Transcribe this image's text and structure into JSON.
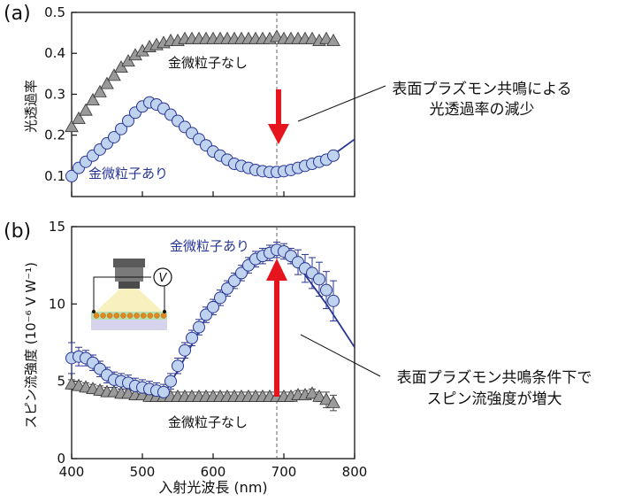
{
  "panels": [
    {
      "label": "(a)",
      "ylabel": "光透過率",
      "xlim": [
        400,
        800
      ],
      "ylim": [
        0.05,
        0.5
      ],
      "yticks": [
        "0.1",
        "0.2",
        "0.3",
        "0.4",
        "0.5"
      ],
      "ytick_values": [
        0.1,
        0.2,
        0.3,
        0.4,
        0.5
      ],
      "series_labels": {
        "without": "金微粒子なし",
        "with": "金微粒子あり"
      },
      "annotation": [
        "表面プラズモン共鳴による",
        "光透過率の減少"
      ]
    },
    {
      "label": "(b)",
      "ylabel": "スピン流強度 (10⁻⁶ V W⁻¹)",
      "xlabel": "入射光波長 (nm)",
      "xlim": [
        400,
        800
      ],
      "ylim": [
        0,
        15
      ],
      "xticks": [
        "400",
        "500",
        "600",
        "700",
        "800"
      ],
      "xtick_values": [
        400,
        500,
        600,
        700,
        800
      ],
      "yticks": [
        "0",
        "5",
        "10",
        "15"
      ],
      "ytick_values": [
        0,
        5,
        10,
        15
      ],
      "series_labels": {
        "with": "金微粒子あり",
        "without": "金微粒子なし"
      },
      "inset_voltmeter": "V",
      "annotation": [
        "表面プラズモン共鳴条件下で",
        "スピン流強度が増大"
      ]
    }
  ],
  "colors": {
    "with": "#283593",
    "with_fill": "#bfd3ef",
    "without": "#555555",
    "without_fill": "#9a9a9a",
    "arrow": "#e5141d"
  },
  "chart_data": [
    {
      "type": "scatter",
      "title": "",
      "xlabel": "",
      "ylabel": "光透過率",
      "xlim": [
        400,
        800
      ],
      "ylim": [
        0.05,
        0.5
      ],
      "grid": false,
      "vline": 690,
      "series": [
        {
          "name": "金微粒子なし",
          "marker": "triangle",
          "x": [
            400,
            410,
            420,
            430,
            440,
            450,
            460,
            470,
            480,
            490,
            500,
            510,
            520,
            530,
            540,
            550,
            560,
            570,
            580,
            590,
            600,
            610,
            620,
            630,
            640,
            650,
            660,
            670,
            680,
            690,
            700,
            710,
            720,
            730,
            740,
            750,
            760,
            770
          ],
          "y": [
            0.22,
            0.24,
            0.26,
            0.285,
            0.305,
            0.325,
            0.345,
            0.365,
            0.38,
            0.395,
            0.405,
            0.415,
            0.42,
            0.425,
            0.43,
            0.43,
            0.435,
            0.435,
            0.435,
            0.435,
            0.435,
            0.435,
            0.435,
            0.435,
            0.435,
            0.435,
            0.435,
            0.435,
            0.435,
            0.44,
            0.435,
            0.435,
            0.435,
            0.435,
            0.435,
            0.43,
            0.435,
            0.43
          ]
        },
        {
          "name": "金微粒子あり",
          "marker": "circle",
          "x": [
            400,
            410,
            420,
            430,
            440,
            450,
            460,
            470,
            480,
            490,
            500,
            510,
            520,
            530,
            540,
            550,
            560,
            570,
            580,
            590,
            600,
            610,
            620,
            630,
            640,
            650,
            660,
            670,
            680,
            690,
            700,
            710,
            720,
            730,
            740,
            750,
            760,
            770
          ],
          "y": [
            0.1,
            0.12,
            0.135,
            0.15,
            0.165,
            0.18,
            0.195,
            0.215,
            0.235,
            0.255,
            0.27,
            0.28,
            0.275,
            0.265,
            0.25,
            0.235,
            0.22,
            0.205,
            0.19,
            0.175,
            0.16,
            0.15,
            0.14,
            0.13,
            0.125,
            0.12,
            0.115,
            0.112,
            0.11,
            0.11,
            0.112,
            0.115,
            0.12,
            0.125,
            0.13,
            0.135,
            0.14,
            0.15
          ]
        }
      ],
      "fit_line": {
        "x": [
          400,
          450,
          500,
          520,
          550,
          600,
          650,
          690,
          720,
          760,
          800
        ],
        "y": [
          0.1,
          0.18,
          0.265,
          0.28,
          0.24,
          0.165,
          0.122,
          0.11,
          0.118,
          0.14,
          0.19
        ]
      },
      "annotations": [
        "表面プラズモン共鳴による",
        "光透過率の減少"
      ]
    },
    {
      "type": "scatter",
      "title": "",
      "xlabel": "入射光波長 (nm)",
      "ylabel": "スピン流強度 (10⁻⁶ V W⁻¹)",
      "xlim": [
        400,
        800
      ],
      "ylim": [
        0,
        15
      ],
      "grid": false,
      "vline": 690,
      "series": [
        {
          "name": "金微粒子あり",
          "marker": "circle",
          "error_bars": true,
          "x": [
            400,
            410,
            420,
            430,
            440,
            450,
            460,
            470,
            480,
            490,
            500,
            510,
            520,
            530,
            540,
            550,
            560,
            570,
            580,
            590,
            600,
            610,
            620,
            630,
            640,
            650,
            660,
            670,
            680,
            690,
            700,
            710,
            720,
            730,
            740,
            750,
            760,
            770
          ],
          "y": [
            6.5,
            6.6,
            6.5,
            6.2,
            5.8,
            5.4,
            5.1,
            5.0,
            4.9,
            4.7,
            4.6,
            4.5,
            4.4,
            4.3,
            5.0,
            6.0,
            7.0,
            7.8,
            8.5,
            9.3,
            9.8,
            10.4,
            11.0,
            11.5,
            12.0,
            12.5,
            12.9,
            13.1,
            13.3,
            13.5,
            13.4,
            13.1,
            12.7,
            12.3,
            12.0,
            11.6,
            10.9,
            10.2
          ],
          "err": [
            1.0,
            0.6,
            0.5,
            0.5,
            0.5,
            0.5,
            0.5,
            0.5,
            0.5,
            0.5,
            0.5,
            0.5,
            0.5,
            0.5,
            0.5,
            0.5,
            0.5,
            0.5,
            0.5,
            0.5,
            0.5,
            0.5,
            0.5,
            0.5,
            0.5,
            0.5,
            0.5,
            0.5,
            0.5,
            0.5,
            0.5,
            0.5,
            0.8,
            0.9,
            1.0,
            1.1,
            1.2,
            1.3
          ]
        },
        {
          "name": "金微粒子なし",
          "marker": "triangle",
          "error_bars": true,
          "x": [
            400,
            410,
            420,
            430,
            440,
            450,
            460,
            470,
            480,
            490,
            500,
            510,
            520,
            530,
            540,
            550,
            560,
            570,
            580,
            590,
            600,
            610,
            620,
            630,
            640,
            650,
            660,
            670,
            680,
            690,
            700,
            710,
            720,
            730,
            740,
            750,
            760,
            770
          ],
          "y": [
            4.8,
            4.7,
            4.6,
            4.5,
            4.4,
            4.3,
            4.3,
            4.2,
            4.2,
            4.1,
            4.1,
            4.0,
            4.0,
            4.0,
            4.0,
            4.0,
            4.0,
            4.0,
            4.0,
            4.0,
            4.0,
            4.0,
            4.0,
            4.0,
            4.0,
            4.0,
            4.0,
            4.0,
            4.0,
            4.0,
            4.0,
            4.0,
            4.1,
            4.1,
            4.2,
            4.0,
            3.8,
            3.6
          ],
          "err": [
            0.3,
            0.3,
            0.3,
            0.3,
            0.3,
            0.3,
            0.3,
            0.3,
            0.3,
            0.3,
            0.3,
            0.3,
            0.3,
            0.3,
            0.3,
            0.3,
            0.3,
            0.3,
            0.3,
            0.3,
            0.3,
            0.3,
            0.3,
            0.3,
            0.3,
            0.3,
            0.3,
            0.3,
            0.3,
            0.3,
            0.3,
            0.3,
            0.3,
            0.3,
            0.3,
            0.3,
            0.5,
            0.5
          ]
        }
      ],
      "fit_line": {
        "x": [
          530,
          560,
          600,
          640,
          680,
          700,
          720,
          760,
          800
        ],
        "y": [
          4.1,
          6.5,
          10.0,
          12.2,
          13.3,
          13.2,
          12.5,
          10.0,
          7.2
        ]
      },
      "annotations": [
        "表面プラズモン共鳴条件下で",
        "スピン流強度が増大"
      ]
    }
  ]
}
